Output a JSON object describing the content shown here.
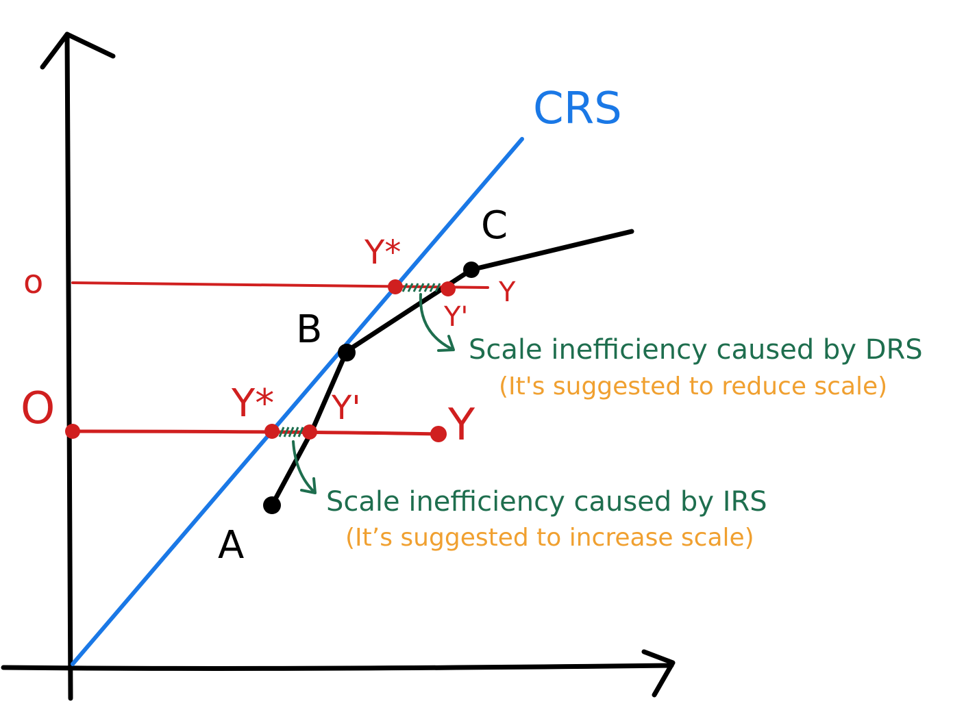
{
  "colors": {
    "axis": "#000000",
    "crs": "#1a78e6",
    "frontier": "#000000",
    "red": "#d01f1f",
    "green": "#1e6e4e",
    "orange": "#f0a030"
  },
  "labels": {
    "crs": "CRS",
    "point_a": "A",
    "point_b": "B",
    "point_c": "C",
    "upper_o": "o",
    "upper_y": "Y",
    "upper_ystar": "Y*",
    "upper_yprime": "Y'",
    "lower_o": "O",
    "lower_y": "Y",
    "lower_ystar": "Y*",
    "lower_yprime": "Y'"
  },
  "notes": {
    "drs_title": "Scale inefficiency caused by DRS",
    "drs_sub": "(It's suggested to reduce scale)",
    "irs_title": "Scale inefficiency caused by IRS",
    "irs_sub": "(It’s suggested to increase scale)"
  }
}
